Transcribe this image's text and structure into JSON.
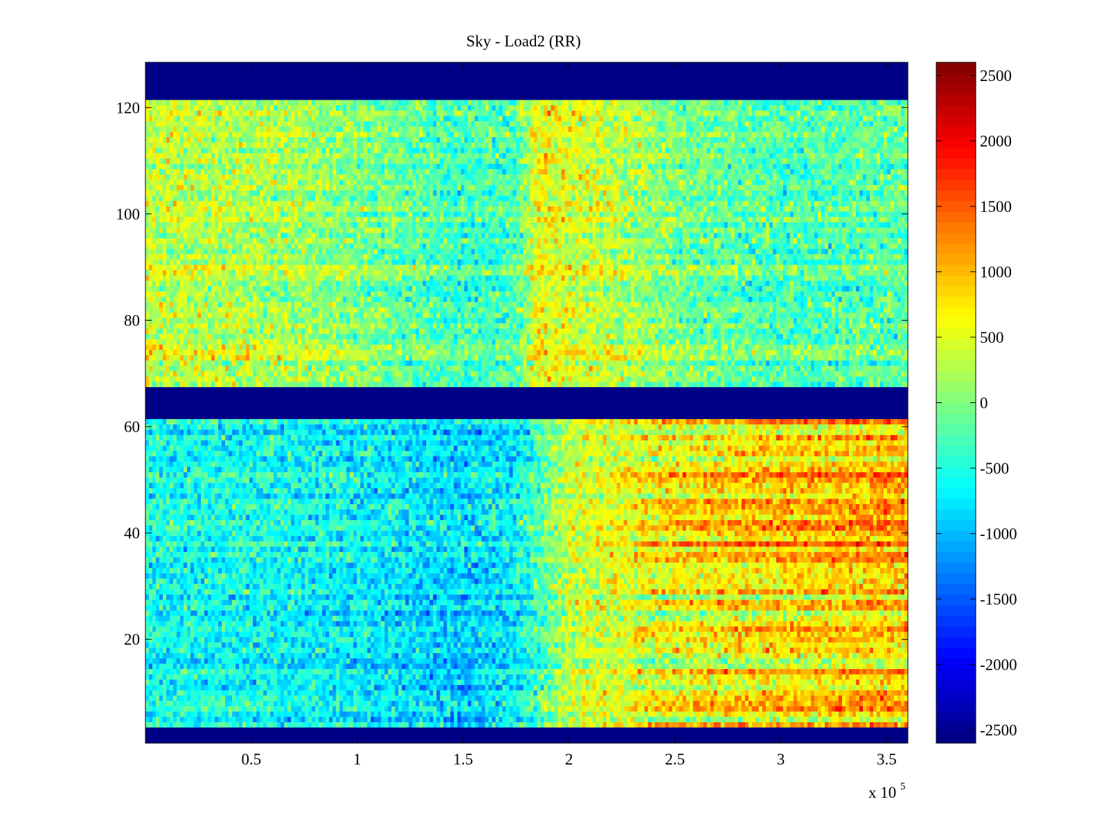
{
  "chart_data": {
    "type": "heatmap",
    "title": "Sky - Load2 (RR)",
    "xlabel": "",
    "ylabel": "",
    "x_multiplier_label": "x 10",
    "x_multiplier_exponent": "5",
    "xlim": [
      0,
      3.6
    ],
    "ylim": [
      0.5,
      128.5
    ],
    "xticks": [
      0.5,
      1,
      1.5,
      2,
      2.5,
      3,
      3.5
    ],
    "xtick_labels": [
      "0.5",
      "1",
      "1.5",
      "2",
      "2.5",
      "3",
      "3.5"
    ],
    "yticks": [
      20,
      40,
      60,
      80,
      100,
      120
    ],
    "ytick_labels": [
      "20",
      "40",
      "60",
      "80",
      "100",
      "120"
    ],
    "colormap": "jet",
    "clim": [
      -2600,
      2600
    ],
    "colorbar_ticks": [
      2500,
      2000,
      1500,
      1000,
      500,
      0,
      -500,
      -1000,
      -1500,
      -2000,
      -2500
    ],
    "colorbar_labels": [
      "2500",
      "2000",
      "1500",
      "1000",
      "500",
      "0",
      "-500",
      "-1000",
      "-1500",
      "-2000",
      "-2500"
    ],
    "colorbar_levels": 64,
    "masked_rows": [
      [
        1,
        3
      ],
      [
        62,
        67
      ],
      [
        122,
        128
      ]
    ],
    "masked_value": -2600,
    "row_bands": [
      {
        "rows": [
          4,
          61
        ],
        "x": [
          0.0,
          0.75,
          1.5,
          1.75,
          2.0,
          2.5,
          3.0,
          3.6
        ],
        "mean": [
          -550,
          -600,
          -850,
          -700,
          350,
          650,
          850,
          1000
        ]
      },
      {
        "rows": [
          68,
          121
        ],
        "x": [
          0.0,
          0.75,
          1.5,
          1.75,
          1.85,
          2.1,
          2.5,
          3.0,
          3.6
        ],
        "mean": [
          400,
          200,
          -300,
          -250,
          600,
          450,
          0,
          -250,
          -150
        ]
      }
    ],
    "noise_std": 300,
    "grid": false,
    "colorbar": "right"
  }
}
